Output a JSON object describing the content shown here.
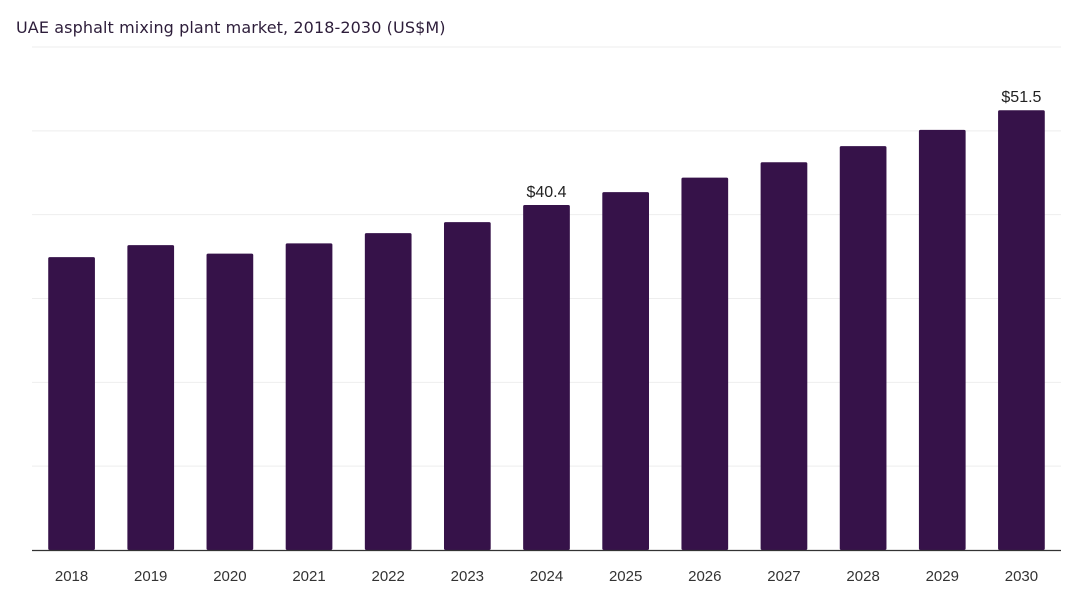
{
  "chart_data": {
    "type": "bar",
    "title": "UAE asphalt mixing plant market, 2018-2030 (US$M)",
    "xlabel": "",
    "ylabel": "",
    "categories": [
      "2018",
      "2019",
      "2020",
      "2021",
      "2022",
      "2023",
      "2024",
      "2025",
      "2026",
      "2027",
      "2028",
      "2029",
      "2030"
    ],
    "values": [
      34.3,
      35.7,
      34.7,
      35.9,
      37.1,
      38.4,
      40.4,
      41.9,
      43.6,
      45.4,
      47.3,
      49.2,
      51.5
    ],
    "data_labels": {
      "6": "$40.4",
      "12": "$51.5"
    },
    "ylim": [
      0,
      58.9
    ],
    "grid": true,
    "legend": "none",
    "colors": {
      "bar": "#361249",
      "grid": "#eeeeee",
      "axis": "#333333"
    }
  }
}
